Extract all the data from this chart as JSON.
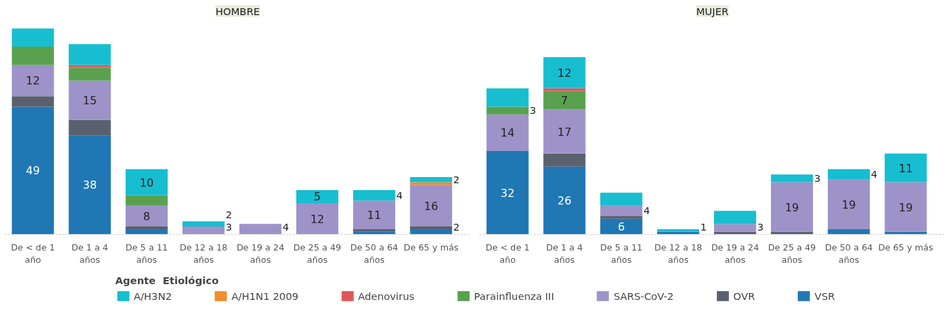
{
  "chart_data": [
    {
      "type": "bar",
      "stacked": true,
      "title": "HOMBRE",
      "legend": "bottom",
      "legend_title": "Agente  Etiológico",
      "grid": false,
      "tick_labels": "x",
      "categories": [
        "De < de 1\naño",
        "De 1 a 4\naños",
        "De 5 a 11\naños",
        "De 12 a 18\naños",
        "De 19 a 24\naños",
        "De 25 a 49\naños",
        "De 50 a 64\naños",
        "De 65 y más"
      ],
      "series": [
        {
          "name": "VSR",
          "color": "#1f77b4",
          "values": [
            49,
            38,
            2,
            0,
            0,
            0,
            1,
            2
          ],
          "value_labels": [
            "49",
            "38",
            null,
            null,
            null,
            null,
            null,
            "2"
          ]
        },
        {
          "name": "OVR",
          "color": "#5a616e",
          "values": [
            4,
            6,
            1,
            0,
            0,
            0,
            1,
            1
          ],
          "value_labels": [
            null,
            null,
            null,
            null,
            null,
            null,
            null,
            null
          ]
        },
        {
          "name": "SARS-CoV-2",
          "color": "#9d93c9",
          "values": [
            12,
            15,
            8,
            3,
            4,
            12,
            11,
            16
          ],
          "value_labels": [
            "12",
            "15",
            "8",
            "3",
            "4",
            "12",
            "11",
            "16"
          ]
        },
        {
          "name": "Parainfluenza III",
          "color": "#59a14f",
          "values": [
            7,
            5,
            4,
            0,
            0,
            0,
            0,
            0
          ],
          "value_labels": [
            null,
            null,
            null,
            null,
            null,
            null,
            null,
            null
          ]
        },
        {
          "name": "Adenovirus",
          "color": "#e15759",
          "values": [
            0,
            1,
            0,
            0,
            0,
            0,
            0,
            0
          ],
          "value_labels": [
            null,
            null,
            null,
            null,
            null,
            null,
            null,
            null
          ]
        },
        {
          "name": "A/H1N1 2009",
          "color": "#f28e2b",
          "values": [
            0,
            0,
            0,
            0,
            0,
            0,
            0,
            1
          ],
          "value_labels": [
            null,
            null,
            null,
            null,
            null,
            null,
            null,
            null
          ]
        },
        {
          "name": "A/H3N2",
          "color": "#17becf",
          "values": [
            7,
            8,
            10,
            2,
            0,
            5,
            4,
            2
          ],
          "value_labels": [
            null,
            null,
            "10",
            "2",
            null,
            "5",
            "4",
            "2"
          ]
        }
      ]
    },
    {
      "type": "bar",
      "stacked": true,
      "title": "MUJER",
      "grid": false,
      "tick_labels": "x",
      "categories": [
        "De < de 1\naño",
        "De 1 a 4\naños",
        "De 5 a 11\naños",
        "De 12 a 18\naños",
        "De 19 a 24\naños",
        "De 25 a 49\naños",
        "De 50 a 64\naños",
        "De 65 y más"
      ],
      "series": [
        {
          "color": "#1f77b4",
          "values": [
            32,
            26,
            6,
            1,
            0,
            0,
            2,
            1
          ],
          "value_labels": [
            "32",
            "26",
            "6",
            null,
            null,
            null,
            null,
            null
          ]
        },
        {
          "color": "#5a616e",
          "values": [
            0,
            5,
            1,
            0,
            1,
            1,
            0,
            0
          ],
          "value_labels": [
            null,
            null,
            null,
            null,
            null,
            null,
            null,
            null
          ]
        },
        {
          "color": "#9d93c9",
          "values": [
            14,
            17,
            4,
            0,
            3,
            19,
            19,
            19
          ],
          "value_labels": [
            "14",
            "17",
            "4",
            null,
            "3",
            "19",
            "19",
            "19"
          ]
        },
        {
          "color": "#59a14f",
          "values": [
            3,
            7,
            0,
            0,
            0,
            0,
            0,
            0
          ],
          "value_labels": [
            "3",
            "7",
            null,
            null,
            null,
            null,
            null,
            null
          ]
        },
        {
          "color": "#e15759",
          "values": [
            0,
            1,
            0,
            0,
            0,
            0,
            0,
            0
          ],
          "value_labels": [
            null,
            null,
            null,
            null,
            null,
            null,
            null,
            null
          ]
        },
        {
          "color": "#f28e2b",
          "values": [
            0,
            0,
            0,
            0,
            0,
            0,
            0,
            0
          ],
          "value_labels": [
            null,
            null,
            null,
            null,
            null,
            null,
            null,
            null
          ]
        },
        {
          "color": "#17becf",
          "values": [
            7,
            12,
            5,
            1,
            5,
            3,
            4,
            11
          ],
          "value_labels": [
            null,
            "12",
            null,
            "1",
            null,
            "3",
            "4",
            "11"
          ]
        }
      ]
    }
  ]
}
